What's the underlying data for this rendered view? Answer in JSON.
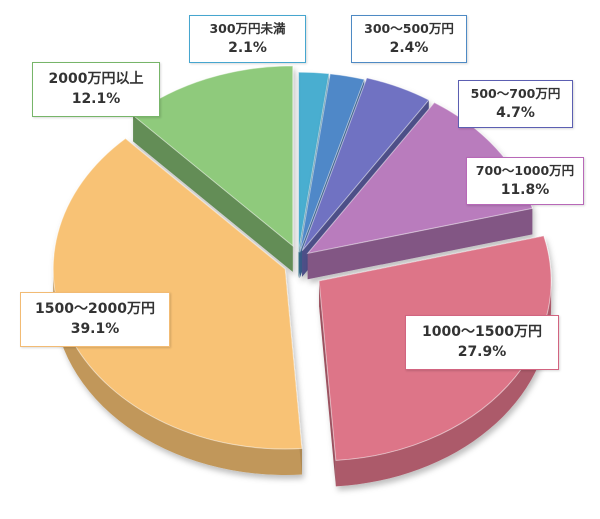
{
  "chart_data": {
    "type": "pie",
    "categories": [
      "300万円未満",
      "300～500万円",
      "500～700万円",
      "700～1000万円",
      "1000～1500万円",
      "1500～2000万円",
      "2000万円以上"
    ],
    "values": [
      2.1,
      2.4,
      4.7,
      11.8,
      27.9,
      39.1,
      12.1
    ],
    "value_labels": [
      "2.1%",
      "2.4%",
      "4.7%",
      "11.8%",
      "27.9%",
      "39.1%",
      "12.1%"
    ],
    "colors": [
      "#4aaed0",
      "#5088c8",
      "#6f72c2",
      "#b97cbd",
      "#dd7488",
      "#f8c274",
      "#8fca7b"
    ],
    "border_colors": [
      "#46a6cf",
      "#4e8ac4",
      "#5c5fb2",
      "#b868b8",
      "#d26480",
      "#f2bb74",
      "#77b569"
    ],
    "style": "3d-exploded",
    "legend": "none"
  }
}
